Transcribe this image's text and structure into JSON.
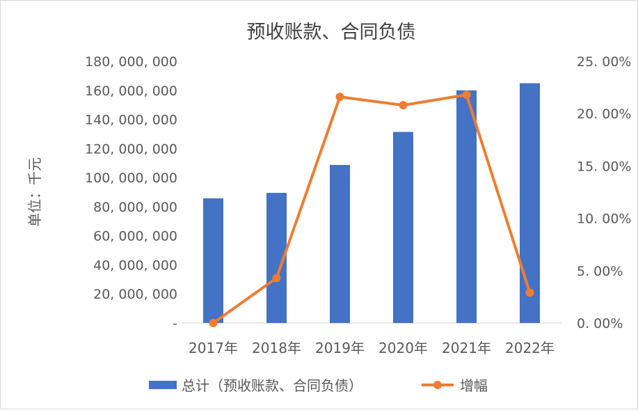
{
  "chart_data": {
    "type": "bar+line",
    "title": "预收账款、合同负债",
    "ylabel": "单位：千元",
    "categories": [
      "2017年",
      "2018年",
      "2019年",
      "2020年",
      "2021年",
      "2022年"
    ],
    "series": [
      {
        "name": "总计（预收账款、合同负债）",
        "type": "bar",
        "axis": "left",
        "values": [
          85700000,
          89500000,
          108700000,
          131400000,
          160000000,
          164900000
        ]
      },
      {
        "name": "增幅",
        "type": "line",
        "axis": "right",
        "values": [
          0.0,
          4.3,
          21.6,
          20.8,
          21.8,
          2.9
        ]
      }
    ],
    "y_left": {
      "ylim": [
        0,
        180000000
      ],
      "ticks": [
        0,
        20000000,
        40000000,
        60000000,
        80000000,
        100000000,
        120000000,
        140000000,
        160000000,
        180000000
      ],
      "tick_labels": [
        "-",
        "20, 000, 000",
        "40, 000, 000",
        "60, 000, 000",
        "80, 000, 000",
        "100, 000, 000",
        "120, 000, 000",
        "140, 000, 000",
        "160, 000, 000",
        "180, 000, 000"
      ]
    },
    "y_right": {
      "ylim": [
        0,
        25
      ],
      "ticks": [
        0,
        5,
        10,
        15,
        20,
        25
      ],
      "tick_labels": [
        "0. 00%",
        "5. 00%",
        "10. 00%",
        "15. 00%",
        "20. 00%",
        "25. 00%"
      ]
    },
    "grid": false,
    "legend": "bottom",
    "colors": {
      "bar": "#4472c4",
      "line": "#ed7d31",
      "text": "#595959",
      "title": "#404040"
    }
  }
}
